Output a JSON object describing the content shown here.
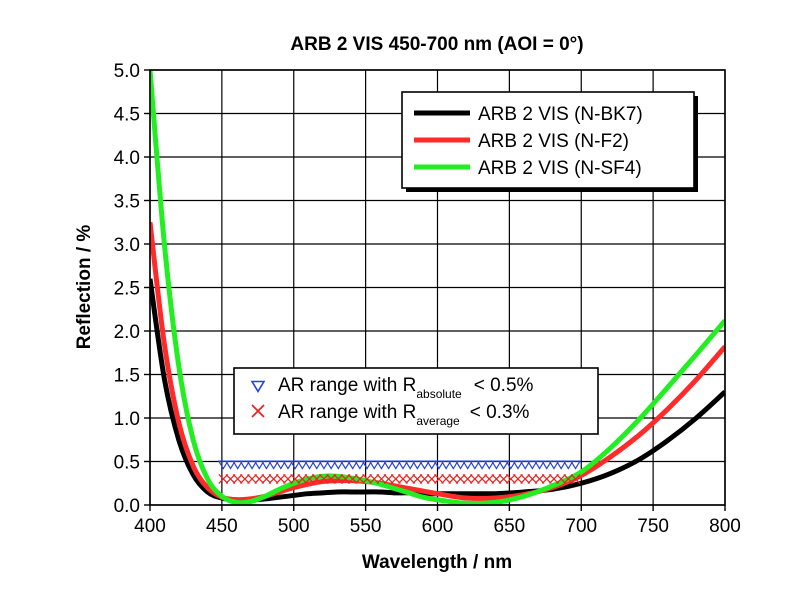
{
  "chart_data": {
    "type": "line",
    "title": "ARB 2 VIS 450-700 nm (AOI = 0°)",
    "xlabel": "Wavelength / nm",
    "ylabel": "Reflection / %",
    "xlim": [
      400,
      800
    ],
    "ylim": [
      0,
      5
    ],
    "xticks": [
      400,
      450,
      500,
      550,
      600,
      650,
      700,
      750,
      800
    ],
    "xtick_labels": [
      "400",
      "450",
      "500",
      "550",
      "600",
      "650",
      "700",
      "750",
      "800"
    ],
    "yticks": [
      0,
      0.5,
      1,
      1.5,
      2,
      2.5,
      3,
      3.5,
      4,
      4.5,
      5
    ],
    "ytick_labels": [
      "0.0",
      "0.5",
      "1.0",
      "1.5",
      "2.0",
      "2.5",
      "3.0",
      "3.5",
      "4.0",
      "4.5",
      "5.0"
    ],
    "grid": true,
    "series": [
      {
        "name": "ARB 2 VIS (N-BK7)",
        "color": "#000000",
        "x": [
          400,
          410,
          420,
          430,
          440,
          450,
          460,
          470,
          480,
          490,
          500,
          510,
          520,
          530,
          540,
          550,
          560,
          570,
          580,
          590,
          600,
          620,
          640,
          660,
          680,
          700,
          720,
          740,
          760,
          780,
          800
        ],
        "y": [
          2.6,
          1.45,
          0.75,
          0.35,
          0.15,
          0.08,
          0.06,
          0.06,
          0.07,
          0.09,
          0.11,
          0.13,
          0.14,
          0.15,
          0.15,
          0.15,
          0.15,
          0.14,
          0.14,
          0.13,
          0.13,
          0.13,
          0.13,
          0.15,
          0.18,
          0.25,
          0.36,
          0.52,
          0.74,
          1.0,
          1.3
        ]
      },
      {
        "name": "ARB 2 VIS (N-F2)",
        "color": "#ff2a2a",
        "x": [
          400,
          410,
          420,
          430,
          440,
          450,
          460,
          470,
          480,
          490,
          500,
          510,
          520,
          530,
          540,
          550,
          560,
          570,
          580,
          590,
          600,
          620,
          640,
          660,
          680,
          700,
          720,
          740,
          760,
          780,
          800
        ],
        "y": [
          3.25,
          1.85,
          0.95,
          0.45,
          0.2,
          0.09,
          0.06,
          0.07,
          0.1,
          0.15,
          0.2,
          0.24,
          0.27,
          0.28,
          0.28,
          0.27,
          0.25,
          0.22,
          0.19,
          0.16,
          0.13,
          0.08,
          0.08,
          0.12,
          0.2,
          0.34,
          0.55,
          0.8,
          1.1,
          1.44,
          1.82
        ]
      },
      {
        "name": "ARB 2 VIS (N-SF4)",
        "color": "#22ee22",
        "x": [
          400,
          410,
          420,
          430,
          440,
          450,
          460,
          470,
          480,
          490,
          500,
          510,
          520,
          530,
          540,
          550,
          560,
          570,
          580,
          590,
          600,
          620,
          640,
          660,
          680,
          700,
          720,
          740,
          760,
          780,
          800
        ],
        "y": [
          5.0,
          3.0,
          1.6,
          0.75,
          0.3,
          0.1,
          0.03,
          0.04,
          0.1,
          0.18,
          0.25,
          0.3,
          0.33,
          0.33,
          0.31,
          0.28,
          0.24,
          0.19,
          0.14,
          0.09,
          0.06,
          0.02,
          0.03,
          0.1,
          0.22,
          0.38,
          0.65,
          0.98,
          1.35,
          1.73,
          2.12
        ]
      }
    ],
    "markers": [
      {
        "name": "AR range with R_absolute < 0.5%",
        "label_prefix": "AR range with R",
        "subscript": "absolute",
        "label_suffix": "< 0.5%",
        "symbol": "triangle-down",
        "color": "#2244dd",
        "y": 0.5,
        "x_range": [
          450,
          700
        ]
      },
      {
        "name": "AR range with R_average < 0.3%",
        "label_prefix": "AR range with R",
        "subscript": "average",
        "label_suffix": "< 0.3%",
        "symbol": "x",
        "color": "#ee2222",
        "y": 0.3,
        "x_range": [
          450,
          700
        ]
      }
    ],
    "legend_location": "top-right"
  }
}
